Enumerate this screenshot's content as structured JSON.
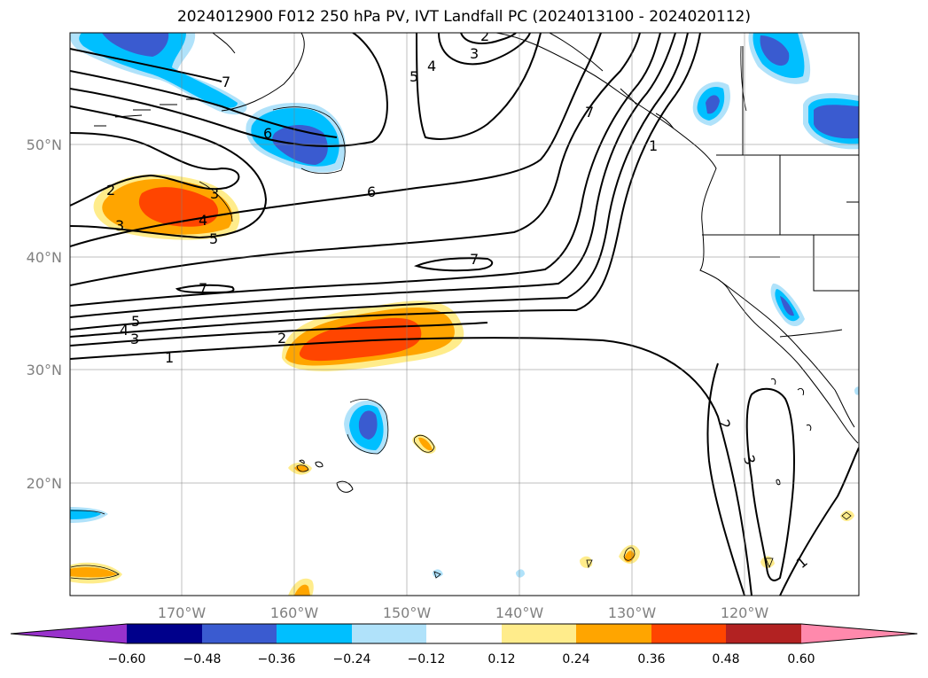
{
  "title": "2024012900 F012 250 hPa PV, IVT Landfall PC (2024013100 - 2024020112)",
  "lat_ticks": [
    "50°N",
    "40°N",
    "30°N",
    "20°N"
  ],
  "lon_ticks": [
    "170°W",
    "160°W",
    "150°W",
    "140°W",
    "130°W",
    "120°W"
  ],
  "colorbar": {
    "labels": [
      "−0.60",
      "−0.48",
      "−0.36",
      "−0.24",
      "−0.12",
      "0.12",
      "0.24",
      "0.36",
      "0.48",
      "0.60"
    ],
    "colors": [
      "#9932cc",
      "#00008b",
      "#3a5bd0",
      "#00bfff",
      "#b0e2fa",
      "#ffffff",
      "#ffec8b",
      "#ffa500",
      "#ff4500",
      "#b22222",
      "#ff89ac"
    ]
  },
  "contour_labels": [
    "1",
    "2",
    "3",
    "4",
    "5",
    "6",
    "7"
  ],
  "palette": {
    "pos1": "#ffec8b",
    "pos2": "#ffa500",
    "pos3": "#ff4500",
    "neg1": "#b0e2fa",
    "neg2": "#00bfff",
    "neg3": "#3a5bd0"
  }
}
